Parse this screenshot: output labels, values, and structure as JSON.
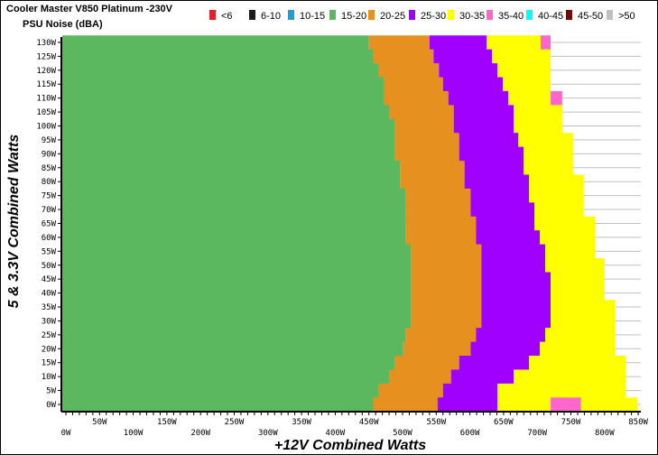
{
  "chart_data": {
    "type": "heatmap",
    "title": "Cooler Master V850 Platinum -230V",
    "subtitle": "PSU Noise (dBA)",
    "xlabel": "+12V Combined Watts",
    "ylabel": "5 & 3.3V Combined Watts",
    "xlim": [
      0,
      850
    ],
    "ylim": [
      0,
      130
    ],
    "x_ticks": [
      "0W",
      "50W",
      "100W",
      "150W",
      "200W",
      "250W",
      "300W",
      "350W",
      "400W",
      "450W",
      "500W",
      "550W",
      "600W",
      "650W",
      "700W",
      "750W",
      "800W",
      "850W"
    ],
    "y_ticks": [
      "0W",
      "5W",
      "10W",
      "15W",
      "20W",
      "25W",
      "30W",
      "35W",
      "40W",
      "45W",
      "50W",
      "55W",
      "60W",
      "65W",
      "70W",
      "75W",
      "80W",
      "85W",
      "90W",
      "95W",
      "100W",
      "105W",
      "110W",
      "115W",
      "120W",
      "125W",
      "130W"
    ],
    "grid": true,
    "legend_position": "top",
    "legend": [
      {
        "label": "<6",
        "color": "#e0202a"
      },
      {
        "label": "6-10",
        "color": "#1a1a1a"
      },
      {
        "label": "10-15",
        "color": "#1e9fd4"
      },
      {
        "label": "15-20",
        "color": "#5bb85f"
      },
      {
        "label": "20-25",
        "color": "#e69020"
      },
      {
        "label": "25-30",
        "color": "#a000ff"
      },
      {
        "label": "30-35",
        "color": "#ffff00"
      },
      {
        "label": "35-40",
        "color": "#ff66cc"
      },
      {
        "label": "40-45",
        "color": "#00ffff"
      },
      {
        "label": "45-50",
        "color": "#800000"
      },
      {
        "label": ">50",
        "color": "#c0c0c0"
      }
    ],
    "rows": [
      {
        "minor_load": 130,
        "segments": [
          [
            450,
            "15-20"
          ],
          [
            540,
            "20-25"
          ],
          [
            625,
            "25-30"
          ],
          [
            705,
            "30-35"
          ],
          [
            720,
            "35-40"
          ]
        ]
      },
      {
        "minor_load": 125,
        "segments": [
          [
            457,
            "15-20"
          ],
          [
            546,
            "20-25"
          ],
          [
            633,
            "25-30"
          ],
          [
            720,
            "30-35"
          ]
        ]
      },
      {
        "minor_load": 120,
        "segments": [
          [
            465,
            "15-20"
          ],
          [
            554,
            "20-25"
          ],
          [
            641,
            "25-30"
          ],
          [
            720,
            "30-35"
          ]
        ]
      },
      {
        "minor_load": 115,
        "segments": [
          [
            473,
            "15-20"
          ],
          [
            560,
            "20-25"
          ],
          [
            649,
            "25-30"
          ],
          [
            720,
            "30-35"
          ]
        ]
      },
      {
        "minor_load": 110,
        "segments": [
          [
            473,
            "15-20"
          ],
          [
            568,
            "20-25"
          ],
          [
            657,
            "25-30"
          ],
          [
            720,
            "30-35"
          ],
          [
            737,
            "35-40"
          ]
        ]
      },
      {
        "minor_load": 105,
        "segments": [
          [
            481,
            "15-20"
          ],
          [
            576,
            "20-25"
          ],
          [
            665,
            "25-30"
          ],
          [
            737,
            "30-35"
          ]
        ]
      },
      {
        "minor_load": 100,
        "segments": [
          [
            489,
            "15-20"
          ],
          [
            576,
            "20-25"
          ],
          [
            665,
            "25-30"
          ],
          [
            737,
            "30-35"
          ]
        ]
      },
      {
        "minor_load": 95,
        "segments": [
          [
            489,
            "15-20"
          ],
          [
            584,
            "20-25"
          ],
          [
            672,
            "25-30"
          ],
          [
            753,
            "30-35"
          ]
        ]
      },
      {
        "minor_load": 90,
        "segments": [
          [
            489,
            "15-20"
          ],
          [
            584,
            "20-25"
          ],
          [
            680,
            "25-30"
          ],
          [
            753,
            "30-35"
          ]
        ]
      },
      {
        "minor_load": 85,
        "segments": [
          [
            497,
            "15-20"
          ],
          [
            592,
            "20-25"
          ],
          [
            680,
            "25-30"
          ],
          [
            753,
            "30-35"
          ]
        ]
      },
      {
        "minor_load": 80,
        "segments": [
          [
            497,
            "15-20"
          ],
          [
            592,
            "20-25"
          ],
          [
            688,
            "25-30"
          ],
          [
            769,
            "30-35"
          ]
        ]
      },
      {
        "minor_load": 75,
        "segments": [
          [
            505,
            "15-20"
          ],
          [
            601,
            "20-25"
          ],
          [
            688,
            "25-30"
          ],
          [
            769,
            "30-35"
          ]
        ]
      },
      {
        "minor_load": 70,
        "segments": [
          [
            505,
            "15-20"
          ],
          [
            601,
            "20-25"
          ],
          [
            696,
            "25-30"
          ],
          [
            769,
            "30-35"
          ]
        ]
      },
      {
        "minor_load": 65,
        "segments": [
          [
            505,
            "15-20"
          ],
          [
            609,
            "20-25"
          ],
          [
            696,
            "25-30"
          ],
          [
            786,
            "30-35"
          ]
        ]
      },
      {
        "minor_load": 60,
        "segments": [
          [
            505,
            "15-20"
          ],
          [
            609,
            "20-25"
          ],
          [
            704,
            "25-30"
          ],
          [
            786,
            "30-35"
          ]
        ]
      },
      {
        "minor_load": 55,
        "segments": [
          [
            513,
            "15-20"
          ],
          [
            617,
            "20-25"
          ],
          [
            712,
            "25-30"
          ],
          [
            786,
            "30-35"
          ]
        ]
      },
      {
        "minor_load": 50,
        "segments": [
          [
            513,
            "15-20"
          ],
          [
            617,
            "20-25"
          ],
          [
            712,
            "25-30"
          ],
          [
            800,
            "30-35"
          ]
        ]
      },
      {
        "minor_load": 45,
        "segments": [
          [
            513,
            "15-20"
          ],
          [
            617,
            "20-25"
          ],
          [
            720,
            "25-30"
          ],
          [
            800,
            "30-35"
          ]
        ]
      },
      {
        "minor_load": 40,
        "segments": [
          [
            513,
            "15-20"
          ],
          [
            617,
            "20-25"
          ],
          [
            720,
            "25-30"
          ],
          [
            800,
            "30-35"
          ]
        ]
      },
      {
        "minor_load": 35,
        "segments": [
          [
            513,
            "15-20"
          ],
          [
            617,
            "20-25"
          ],
          [
            720,
            "25-30"
          ],
          [
            816,
            "30-35"
          ]
        ]
      },
      {
        "minor_load": 30,
        "segments": [
          [
            513,
            "15-20"
          ],
          [
            617,
            "20-25"
          ],
          [
            720,
            "25-30"
          ],
          [
            816,
            "30-35"
          ]
        ]
      },
      {
        "minor_load": 25,
        "segments": [
          [
            505,
            "15-20"
          ],
          [
            609,
            "20-25"
          ],
          [
            712,
            "25-30"
          ],
          [
            816,
            "30-35"
          ]
        ]
      },
      {
        "minor_load": 20,
        "segments": [
          [
            501,
            "15-20"
          ],
          [
            601,
            "20-25"
          ],
          [
            704,
            "25-30"
          ],
          [
            816,
            "30-35"
          ]
        ]
      },
      {
        "minor_load": 15,
        "segments": [
          [
            489,
            "15-20"
          ],
          [
            584,
            "20-25"
          ],
          [
            688,
            "25-30"
          ],
          [
            831,
            "30-35"
          ]
        ]
      },
      {
        "minor_load": 10,
        "segments": [
          [
            481,
            "15-20"
          ],
          [
            572,
            "20-25"
          ],
          [
            665,
            "25-30"
          ],
          [
            831,
            "30-35"
          ]
        ]
      },
      {
        "minor_load": 5,
        "segments": [
          [
            465,
            "15-20"
          ],
          [
            560,
            "20-25"
          ],
          [
            641,
            "25-30"
          ],
          [
            831,
            "30-35"
          ]
        ]
      },
      {
        "minor_load": 0,
        "segments": [
          [
            457,
            "15-20"
          ],
          [
            552,
            "20-25"
          ],
          [
            641,
            "25-30"
          ],
          [
            720,
            "30-35"
          ],
          [
            765,
            "35-40"
          ],
          [
            849,
            "30-35"
          ]
        ]
      }
    ]
  }
}
